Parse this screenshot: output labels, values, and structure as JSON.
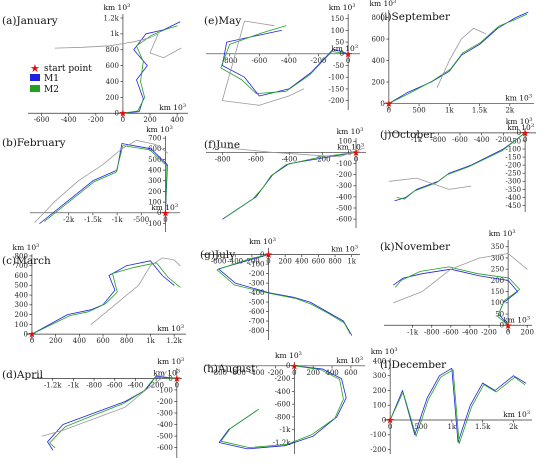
{
  "unit_label": "km 10",
  "unit_exp": "3",
  "legend": {
    "start_label": "start point",
    "m1_label": "M1",
    "m2_label": "M2",
    "colors": {
      "start": "#e01010",
      "m1": "#2020e0",
      "m2": "#22a022",
      "aux": "#9a9a9a"
    }
  },
  "chart_data": [
    {
      "type": "line",
      "label": "(a)",
      "title": "January",
      "xlim": [
        -700,
        480
      ],
      "ylim": [
        -60,
        1250
      ],
      "xticks": [
        "-600",
        "-400",
        "-200",
        "0",
        "200",
        "400"
      ],
      "yticks": [
        "0",
        "200",
        "400",
        "600",
        "800",
        "1k",
        "1.2k"
      ],
      "start": [
        0,
        0
      ],
      "series": [
        {
          "name": "M1",
          "x": [
            0,
            120,
            150,
            100,
            180,
            80,
            170,
            300,
            420
          ],
          "y": [
            0,
            20,
            180,
            420,
            600,
            800,
            1000,
            1050,
            1150
          ]
        },
        {
          "name": "M2",
          "x": [
            0,
            110,
            160,
            130,
            150,
            100,
            210,
            320,
            400
          ],
          "y": [
            0,
            30,
            200,
            400,
            650,
            850,
            980,
            1060,
            1100
          ]
        },
        {
          "name": "aux",
          "x": [
            -500,
            -300,
            -100,
            80,
            200,
            260,
            200,
            300,
            430
          ],
          "y": [
            820,
            830,
            850,
            900,
            950,
            1000,
            760,
            700,
            820
          ]
        }
      ]
    },
    {
      "type": "line",
      "label": "(b)",
      "title": "February",
      "xlim": [
        -2800,
        300
      ],
      "ylim": [
        -180,
        720
      ],
      "xticks": [
        "-2k",
        "-1.5k",
        "-1k",
        "-500",
        "0"
      ],
      "yticks": [
        "-100",
        "0",
        "100",
        "200",
        "300",
        "400",
        "500",
        "600",
        "700"
      ],
      "start": [
        0,
        0
      ],
      "series": [
        {
          "name": "M1",
          "x": [
            0,
            40,
            -300,
            -900,
            -1000,
            -1500,
            -2600
          ],
          "y": [
            0,
            450,
            600,
            650,
            400,
            300,
            -100
          ]
        },
        {
          "name": "M2",
          "x": [
            0,
            30,
            -320,
            -880,
            -1020,
            -1480,
            -2500
          ],
          "y": [
            0,
            440,
            590,
            630,
            380,
            290,
            -80
          ]
        },
        {
          "name": "aux",
          "x": [
            -2700,
            -2300,
            -1800,
            -1300,
            -900,
            -600,
            -200,
            50
          ],
          "y": [
            -90,
            100,
            300,
            450,
            600,
            680,
            640,
            560
          ]
        }
      ]
    },
    {
      "type": "line",
      "label": "(c)",
      "title": "March",
      "xlim": [
        -50,
        1300
      ],
      "ylim": [
        -60,
        820
      ],
      "xticks": [
        "0",
        "200",
        "400",
        "600",
        "800",
        "1k",
        "1.2k"
      ],
      "yticks": [
        "0",
        "100",
        "200",
        "300",
        "400",
        "500",
        "600",
        "700",
        "800"
      ],
      "start": [
        0,
        0
      ],
      "series": [
        {
          "name": "M1",
          "x": [
            0,
            300,
            500,
            600,
            700,
            650,
            800,
            1000,
            1100,
            1200
          ],
          "y": [
            0,
            200,
            250,
            300,
            450,
            600,
            700,
            750,
            600,
            500
          ]
        },
        {
          "name": "M2",
          "x": [
            0,
            320,
            480,
            620,
            720,
            680,
            850,
            1050,
            1150,
            1250
          ],
          "y": [
            0,
            190,
            230,
            310,
            430,
            620,
            680,
            730,
            580,
            480
          ]
        },
        {
          "name": "aux",
          "x": [
            500,
            700,
            900,
            1000,
            1100,
            1200,
            1250
          ],
          "y": [
            100,
            300,
            500,
            700,
            780,
            760,
            700
          ]
        }
      ]
    },
    {
      "type": "line",
      "label": "(d)",
      "title": "April",
      "xlim": [
        -1400,
        50
      ],
      "ylim": [
        -690,
        90
      ],
      "xticks": [
        "-1.2k",
        "-1k",
        "-800",
        "-600",
        "-400",
        "-200",
        "0"
      ],
      "yticks": [
        "-600",
        "-500",
        "-400",
        "-300",
        "-200",
        "-100",
        "0"
      ],
      "start": [
        0,
        0
      ],
      "series": [
        {
          "name": "M1",
          "x": [
            0,
            -200,
            -300,
            -500,
            -800,
            -1100,
            -1250,
            -1200
          ],
          "y": [
            0,
            20,
            -100,
            -200,
            -300,
            -400,
            -550,
            -620
          ]
        },
        {
          "name": "M2",
          "x": [
            0,
            -210,
            -320,
            -520,
            -780,
            -1080,
            -1230,
            -1180
          ],
          "y": [
            0,
            10,
            -110,
            -220,
            -310,
            -420,
            -560,
            -600
          ]
        },
        {
          "name": "aux",
          "x": [
            -1300,
            -1100,
            -800,
            -500,
            -300,
            -150,
            -100
          ],
          "y": [
            -500,
            -450,
            -350,
            -250,
            -100,
            0,
            60
          ]
        }
      ]
    },
    {
      "type": "line",
      "label": "(e)",
      "title": "May",
      "xlim": [
        -960,
        80
      ],
      "ylim": [
        -240,
        170
      ],
      "xticks": [
        "-800",
        "-600",
        "-400",
        "-200",
        "0"
      ],
      "yticks": [
        "-200",
        "-150",
        "-100",
        "-50",
        "0",
        "50",
        "100",
        "150"
      ],
      "start": [
        0,
        0
      ],
      "series": [
        {
          "name": "M1",
          "x": [
            0,
            -100,
            -250,
            -400,
            -600,
            -700,
            -850,
            -820,
            -600,
            -450
          ],
          "y": [
            0,
            20,
            -80,
            -150,
            -180,
            -100,
            -50,
            50,
            80,
            100
          ]
        },
        {
          "name": "M2",
          "x": [
            0,
            -110,
            -260,
            -420,
            -620,
            -720,
            -860,
            -800,
            -580,
            -420
          ],
          "y": [
            0,
            10,
            -90,
            -160,
            -170,
            -110,
            -60,
            40,
            90,
            120
          ]
        },
        {
          "name": "aux",
          "x": [
            -500,
            -700,
            -850,
            -600,
            -400,
            -300
          ],
          "y": [
            120,
            140,
            -200,
            -220,
            -180,
            -150
          ]
        }
      ]
    },
    {
      "type": "line",
      "label": "(f)",
      "title": "June",
      "xlim": [
        -900,
        60
      ],
      "ylim": [
        -680,
        130
      ],
      "xticks": [
        "-800",
        "-600",
        "-400",
        "-200",
        "0"
      ],
      "yticks": [
        "-600",
        "-500",
        "-400",
        "-300",
        "-200",
        "-100",
        "0",
        "100"
      ],
      "start": [
        0,
        0
      ],
      "series": [
        {
          "name": "M1",
          "x": [
            0,
            -200,
            -400,
            -500,
            -550,
            -600,
            -700,
            -800
          ],
          "y": [
            0,
            -50,
            -100,
            -200,
            -300,
            -400,
            -500,
            -600
          ]
        },
        {
          "name": "M2",
          "x": [
            0,
            -210,
            -420,
            -510,
            -560,
            -620,
            -720,
            -780
          ],
          "y": [
            0,
            -40,
            -110,
            -210,
            -320,
            -420,
            -520,
            -580
          ]
        },
        {
          "name": "aux",
          "x": [
            -850,
            -700,
            -500,
            -300,
            -100,
            50
          ],
          "y": [
            50,
            30,
            0,
            -20,
            -40,
            40
          ]
        }
      ]
    },
    {
      "type": "line",
      "label": "(g)",
      "title": "July",
      "xlim": [
        -800,
        1100
      ],
      "ylim": [
        -900,
        70
      ],
      "xticks": [
        "-600",
        "-400",
        "-200",
        "0",
        "200",
        "400",
        "600",
        "800",
        "1k"
      ],
      "yticks": [
        "-800",
        "-700",
        "-600",
        "-500",
        "-400",
        "-300",
        "-200",
        "-100",
        "0"
      ],
      "start": [
        0,
        0
      ],
      "series": [
        {
          "name": "M1",
          "x": [
            0,
            -200,
            -600,
            -400,
            0,
            300,
            500,
            700,
            900,
            1000
          ],
          "y": [
            0,
            -50,
            -150,
            -300,
            -400,
            -450,
            -500,
            -600,
            -700,
            -850
          ]
        },
        {
          "name": "M2",
          "x": [
            0,
            -210,
            -620,
            -410,
            20,
            320,
            510,
            720,
            910,
            980
          ],
          "y": [
            0,
            -40,
            -160,
            -320,
            -410,
            -460,
            -520,
            -620,
            -720,
            -830
          ]
        }
      ]
    },
    {
      "type": "line",
      "label": "(h)",
      "title": "August",
      "xlim": [
        -950,
        750
      ],
      "ylim": [
        -1380,
        60
      ],
      "xticks": [
        "-800",
        "-600",
        "-400",
        "-200",
        "0",
        "200",
        "400",
        "600"
      ],
      "yticks": [
        "-1.2k",
        "-1k",
        "-800",
        "-600",
        "-400",
        "-200",
        "0"
      ],
      "start": [
        0,
        0
      ],
      "series": [
        {
          "name": "M1",
          "x": [
            0,
            300,
            500,
            550,
            450,
            200,
            -100,
            -500,
            -800,
            -700,
            -400
          ],
          "y": [
            0,
            -50,
            -200,
            -500,
            -800,
            -1100,
            -1250,
            -1300,
            -1200,
            -1000,
            -700
          ]
        },
        {
          "name": "M2",
          "x": [
            0,
            280,
            480,
            520,
            430,
            180,
            -80,
            -480,
            -780,
            -680,
            -380
          ],
          "y": [
            0,
            -60,
            -210,
            -520,
            -820,
            -1080,
            -1230,
            -1280,
            -1180,
            -980,
            -680
          ]
        }
      ]
    },
    {
      "type": "line",
      "label": "(i)",
      "title": "September",
      "xlim": [
        -80,
        2400
      ],
      "ylim": [
        -60,
        870
      ],
      "xticks": [
        "0",
        "500",
        "1k",
        "1.5k",
        "2k"
      ],
      "yticks": [
        "0",
        "200",
        "400",
        "600",
        "800"
      ],
      "start": [
        0,
        0
      ],
      "series": [
        {
          "name": "M1",
          "x": [
            0,
            300,
            700,
            1000,
            1200,
            1500,
            1800,
            2100,
            2300
          ],
          "y": [
            0,
            100,
            200,
            300,
            450,
            550,
            700,
            800,
            850
          ]
        },
        {
          "name": "M2",
          "x": [
            0,
            320,
            720,
            1020,
            1220,
            1520,
            1820,
            2080,
            2280
          ],
          "y": [
            0,
            90,
            210,
            320,
            470,
            570,
            720,
            780,
            830
          ]
        },
        {
          "name": "aux",
          "x": [
            800,
            1000,
            1200,
            1400,
            1600
          ],
          "y": [
            150,
            400,
            600,
            700,
            650
          ]
        }
      ]
    },
    {
      "type": "line",
      "label": "(j)",
      "title": "October",
      "xlim": [
        -1300,
        100
      ],
      "ylim": [
        -490,
        30
      ],
      "xticks": [
        "-1k",
        "-800",
        "-600",
        "-400",
        "-200",
        "0"
      ],
      "yticks": [
        "-450",
        "-400",
        "-350",
        "-300",
        "-250",
        "-200",
        "-150",
        "-100",
        "-50",
        "0"
      ],
      "start": [
        0,
        0
      ],
      "series": [
        {
          "name": "M1",
          "x": [
            0,
            -200,
            -500,
            -700,
            -800,
            -1000,
            -1100,
            -1200
          ],
          "y": [
            0,
            -100,
            -200,
            -250,
            -300,
            -350,
            -400,
            -420
          ]
        },
        {
          "name": "M2",
          "x": [
            0,
            -210,
            -520,
            -720,
            -820,
            -1020,
            -1110,
            -1180
          ],
          "y": [
            0,
            -110,
            -210,
            -260,
            -310,
            -360,
            -410,
            -400
          ]
        },
        {
          "name": "aux",
          "x": [
            -1250,
            -1000,
            -700,
            -500
          ],
          "y": [
            -300,
            -280,
            -350,
            -330
          ]
        }
      ]
    },
    {
      "type": "line",
      "label": "(k)",
      "title": "November",
      "xlim": [
        -1300,
        250
      ],
      "ylim": [
        -30,
        380
      ],
      "xticks": [
        "-1k",
        "-800",
        "-600",
        "-400",
        "-200",
        "0",
        "200"
      ],
      "yticks": [
        "0",
        "50",
        "100",
        "150",
        "200",
        "250",
        "300",
        "350"
      ],
      "start": [
        0,
        0
      ],
      "series": [
        {
          "name": "M1",
          "x": [
            0,
            -100,
            -50,
            100,
            0,
            -300,
            -600,
            -900,
            -1100,
            -1200
          ],
          "y": [
            0,
            50,
            100,
            150,
            200,
            220,
            250,
            230,
            210,
            180
          ]
        },
        {
          "name": "M2",
          "x": [
            0,
            -110,
            -40,
            120,
            10,
            -320,
            -620,
            -920,
            -1120,
            -1180
          ],
          "y": [
            0,
            40,
            110,
            160,
            210,
            230,
            260,
            240,
            200,
            170
          ]
        },
        {
          "name": "aux",
          "x": [
            -1200,
            -900,
            -600,
            -300,
            0,
            200
          ],
          "y": [
            100,
            150,
            250,
            300,
            320,
            250
          ]
        }
      ]
    },
    {
      "type": "line",
      "label": "(l)",
      "title": "December",
      "xlim": [
        -100,
        2300
      ],
      "ylim": [
        -230,
        420
      ],
      "xticks": [
        "0",
        "500",
        "1k",
        "1.5k",
        "2k"
      ],
      "yticks": [
        "-200",
        "-100",
        "0",
        "100",
        "200",
        "300",
        "400"
      ],
      "start": [
        0,
        0
      ],
      "series": [
        {
          "name": "M1",
          "x": [
            0,
            200,
            400,
            600,
            800,
            1000,
            1100,
            1300,
            1500,
            1700,
            2000,
            2200
          ],
          "y": [
            0,
            200,
            -100,
            150,
            300,
            350,
            -150,
            100,
            250,
            200,
            300,
            250
          ]
        },
        {
          "name": "M2",
          "x": [
            0,
            210,
            420,
            620,
            820,
            1020,
            1120,
            1320,
            1520,
            1720,
            2020,
            2180
          ],
          "y": [
            0,
            190,
            -110,
            140,
            290,
            340,
            -160,
            90,
            240,
            190,
            290,
            240
          ]
        }
      ]
    }
  ]
}
